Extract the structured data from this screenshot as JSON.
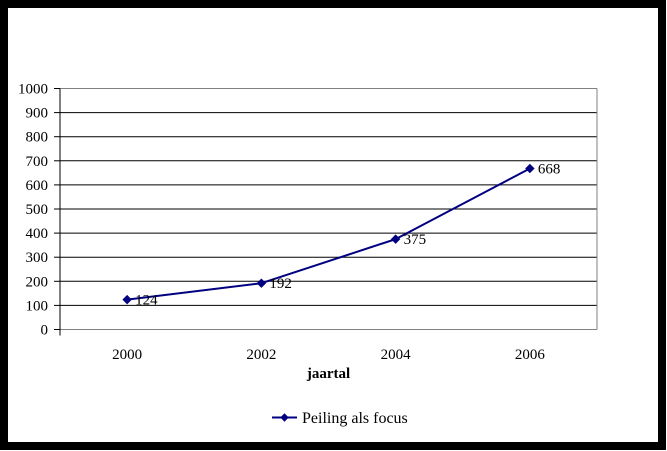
{
  "window": {
    "background_color": "#ffffff",
    "frame_color": "#000000"
  },
  "chart_data": {
    "type": "line",
    "title": "",
    "categories": [
      "2000",
      "2002",
      "2004",
      "2006"
    ],
    "series": [
      {
        "name": "Peiling als focus",
        "values": [
          124,
          192,
          375,
          668
        ],
        "color": "#000080",
        "marker": "diamond"
      }
    ],
    "data_labels": [
      "124",
      "192",
      "375",
      "668"
    ],
    "xlabel": "jaartal",
    "ylabel": "",
    "ylim": [
      0,
      1000
    ],
    "ytick_step": 100,
    "ytick_labels": [
      "0",
      "100",
      "200",
      "300",
      "400",
      "500",
      "600",
      "700",
      "800",
      "900",
      "1000"
    ],
    "grid": "horizontal",
    "gridline_color": "#000000",
    "plot_border_color": "#808080",
    "value_axis_color": "#000000",
    "category_axis_color": "#808080",
    "legend": {
      "position": "bottom",
      "border": "none",
      "entries": [
        {
          "label": "Peiling als focus",
          "color": "#000080",
          "marker": "diamond"
        }
      ]
    }
  }
}
